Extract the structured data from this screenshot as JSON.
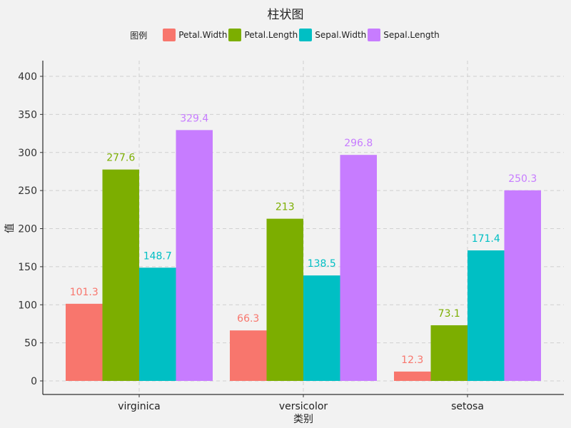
{
  "chart_data": {
    "type": "bar",
    "title": "柱状图",
    "xlabel": "类别",
    "ylabel": "值",
    "legend_title": "图例",
    "legend_position": "top",
    "grid": true,
    "ylim": [
      0,
      420
    ],
    "yticks": [
      0,
      50,
      100,
      150,
      200,
      250,
      300,
      350,
      400
    ],
    "categories": [
      "virginica",
      "versicolor",
      "setosa"
    ],
    "series": [
      {
        "name": "Petal.Width",
        "color": "#F8766D",
        "values": [
          101.3,
          66.3,
          12.3
        ],
        "labels": [
          "101.3",
          "66.3",
          "12.3"
        ]
      },
      {
        "name": "Petal.Length",
        "color": "#7CAE00",
        "values": [
          277.6,
          213,
          73.1
        ],
        "labels": [
          "277.6",
          "213",
          "73.1"
        ]
      },
      {
        "name": "Sepal.Width",
        "color": "#00BFC4",
        "values": [
          148.7,
          138.5,
          171.4
        ],
        "labels": [
          "148.7",
          "138.5",
          "171.4"
        ]
      },
      {
        "name": "Sepal.Length",
        "color": "#C77CFF",
        "values": [
          329.4,
          296.8,
          250.3
        ],
        "labels": [
          "329.4",
          "296.8",
          "250.3"
        ]
      }
    ]
  }
}
